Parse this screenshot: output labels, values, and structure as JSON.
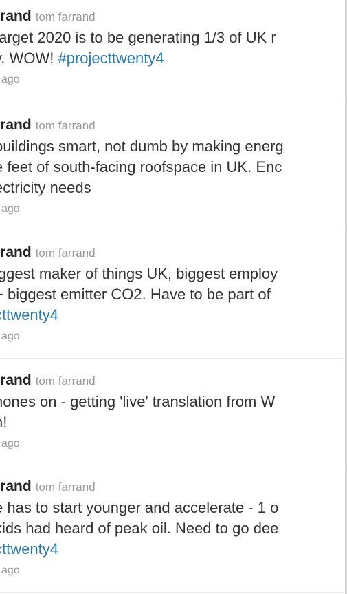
{
  "tweets": [
    {
      "screen_name": "rrand",
      "full_name": "tom farrand",
      "lines": [
        "target 2020 is to be generating 1/3 of UK r"
      ],
      "line2_text": "y. WOW! ",
      "hashtag": "#projecttwenty4",
      "line3": "",
      "timestamp": "ago"
    },
    {
      "screen_name": "rrand",
      "full_name": "tom farrand",
      "lines": [
        "buildings smart, not dumb by making energ",
        "e feet of south-facing roofspace in UK. Enc",
        "ectricity needs"
      ],
      "timestamp": "ago"
    },
    {
      "screen_name": "rrand",
      "full_name": "tom farrand",
      "lines": [
        "iggest maker of things UK, biggest employ",
        " + biggest emitter CO2. Have to be part of"
      ],
      "hashtag": "cttwenty4",
      "timestamp": "ago"
    },
    {
      "screen_name": "rrand",
      "full_name": "tom farrand",
      "lines": [
        "hones on - getting 'live' translation from W",
        "h!"
      ],
      "timestamp": "ago"
    },
    {
      "screen_name": "rrand",
      "full_name": "tom farrand",
      "lines": [
        "e has to start younger and accelerate - 1 o",
        "kids had heard of peak oil. Need to go dee"
      ],
      "hashtag": "cttwenty4",
      "timestamp": "ago"
    }
  ]
}
